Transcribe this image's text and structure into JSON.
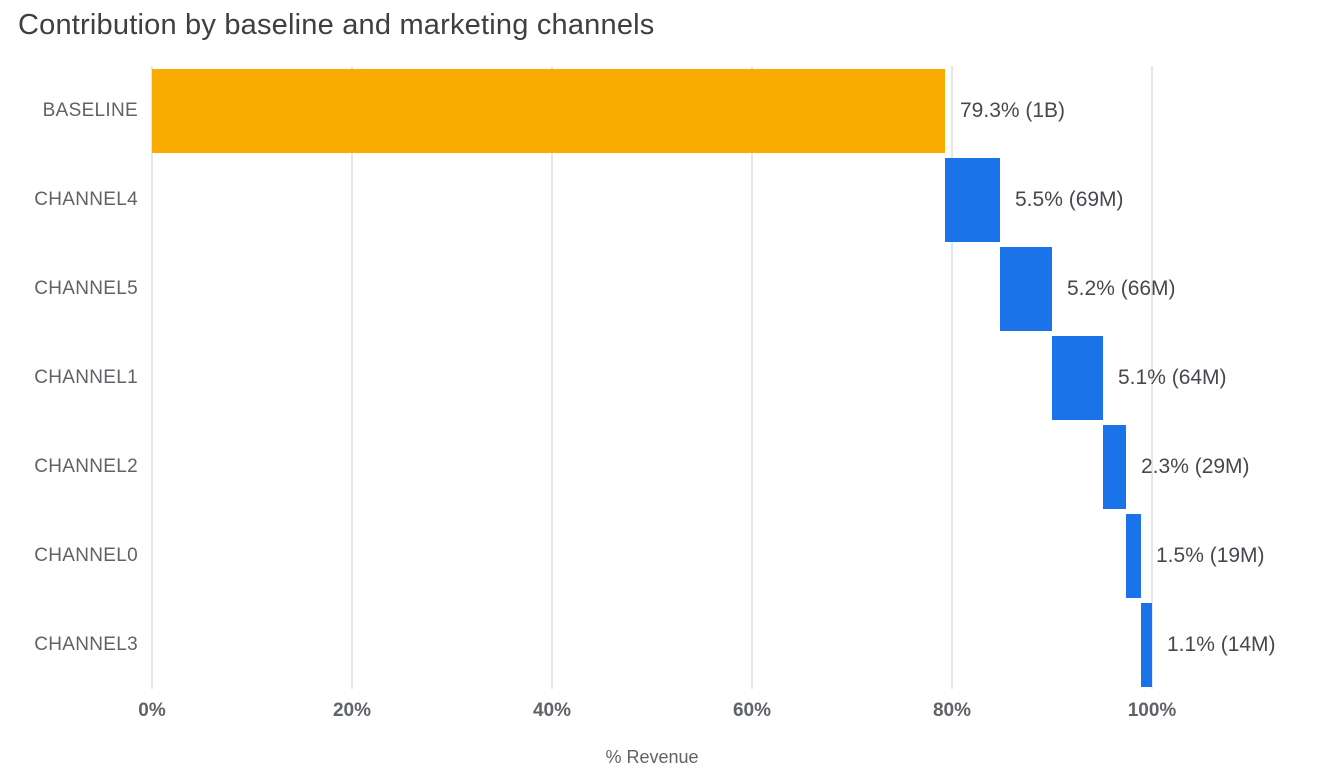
{
  "title": "Contribution by baseline and marketing channels",
  "chart_data": {
    "type": "bar",
    "subtype": "waterfall",
    "orientation": "horizontal",
    "title": "Contribution by baseline and marketing channels",
    "xlabel": "% Revenue",
    "ylabel": "",
    "xlim": [
      0,
      100
    ],
    "x_ticks": [
      0,
      20,
      40,
      60,
      80,
      100
    ],
    "x_tick_labels": [
      "0%",
      "20%",
      "40%",
      "60%",
      "80%",
      "100%"
    ],
    "grid": "vertical",
    "legend": "none",
    "categories": [
      "BASELINE",
      "CHANNEL4",
      "CHANNEL5",
      "CHANNEL1",
      "CHANNEL2",
      "CHANNEL0",
      "CHANNEL3"
    ],
    "values_percent": [
      79.3,
      5.5,
      5.2,
      5.1,
      2.3,
      1.5,
      1.1
    ],
    "bar_starts_percent": [
      0,
      79.3,
      84.8,
      90.0,
      95.1,
      97.4,
      98.9
    ],
    "data_labels": [
      "79.3% (1B)",
      "5.5% (69M)",
      "5.2% (66M)",
      "5.1% (64M)",
      "2.3% (29M)",
      "1.5% (19M)",
      "1.1% (14M)"
    ],
    "absolute_values": [
      "1B",
      "69M",
      "66M",
      "64M",
      "29M",
      "19M",
      "14M"
    ],
    "bar_colors": [
      "#F9AB00",
      "#1A73E8",
      "#1A73E8",
      "#1A73E8",
      "#1A73E8",
      "#1A73E8",
      "#1A73E8"
    ]
  },
  "colors": {
    "baseline_bar": "#F9AB00",
    "channel_bar": "#1A73E8",
    "gridline": "#E4E7EA",
    "title_text": "#3C4043",
    "axis_text": "#5F6368",
    "label_text": "#45494E"
  }
}
